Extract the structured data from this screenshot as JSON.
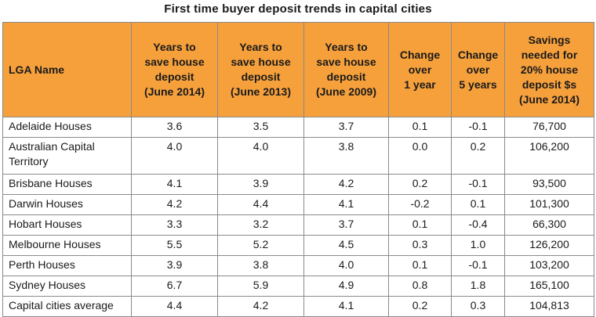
{
  "chart_data": {
    "type": "table",
    "title": "First time buyer deposit trends in capital cities",
    "columns": [
      "LGA Name",
      "Years to\nsave house\ndeposit\n(June 2014)",
      "Years to\nsave house\ndeposit\n(June 2013)",
      "Years to\nsave house\ndeposit\n(June 2009)",
      "Change\nover\n1 year",
      "Change\nover\n5 years",
      "Savings\nneeded for\n20% house\ndeposit  $s\n(June 2014)"
    ],
    "rows": [
      [
        "Adelaide Houses",
        "3.6",
        "3.5",
        "3.7",
        "0.1",
        "-0.1",
        "76,700"
      ],
      [
        "Australian Capital Territory",
        "4.0",
        "4.0",
        "3.8",
        "0.0",
        "0.2",
        "106,200"
      ],
      [
        "Brisbane Houses",
        "4.1",
        "3.9",
        "4.2",
        "0.2",
        "-0.1",
        "93,500"
      ],
      [
        "Darwin Houses",
        "4.2",
        "4.4",
        "4.1",
        "-0.2",
        "0.1",
        "101,300"
      ],
      [
        "Hobart Houses",
        "3.3",
        "3.2",
        "3.7",
        "0.1",
        "-0.4",
        "66,300"
      ],
      [
        "Melbourne Houses",
        "5.5",
        "5.2",
        "4.5",
        "0.3",
        "1.0",
        "126,200"
      ],
      [
        "Perth Houses",
        "3.9",
        "3.8",
        "4.0",
        "0.1",
        "-0.1",
        "103,200"
      ],
      [
        "Sydney Houses",
        "6.7",
        "5.9",
        "4.9",
        "0.8",
        "1.8",
        "165,100"
      ],
      [
        "Capital cities average",
        "4.4",
        "4.2",
        "4.1",
        "0.2",
        "0.3",
        "104,813"
      ]
    ]
  },
  "colors": {
    "header_background": "#f6a03c",
    "border": "#8a8a8a",
    "text": "#1a1a1a"
  }
}
